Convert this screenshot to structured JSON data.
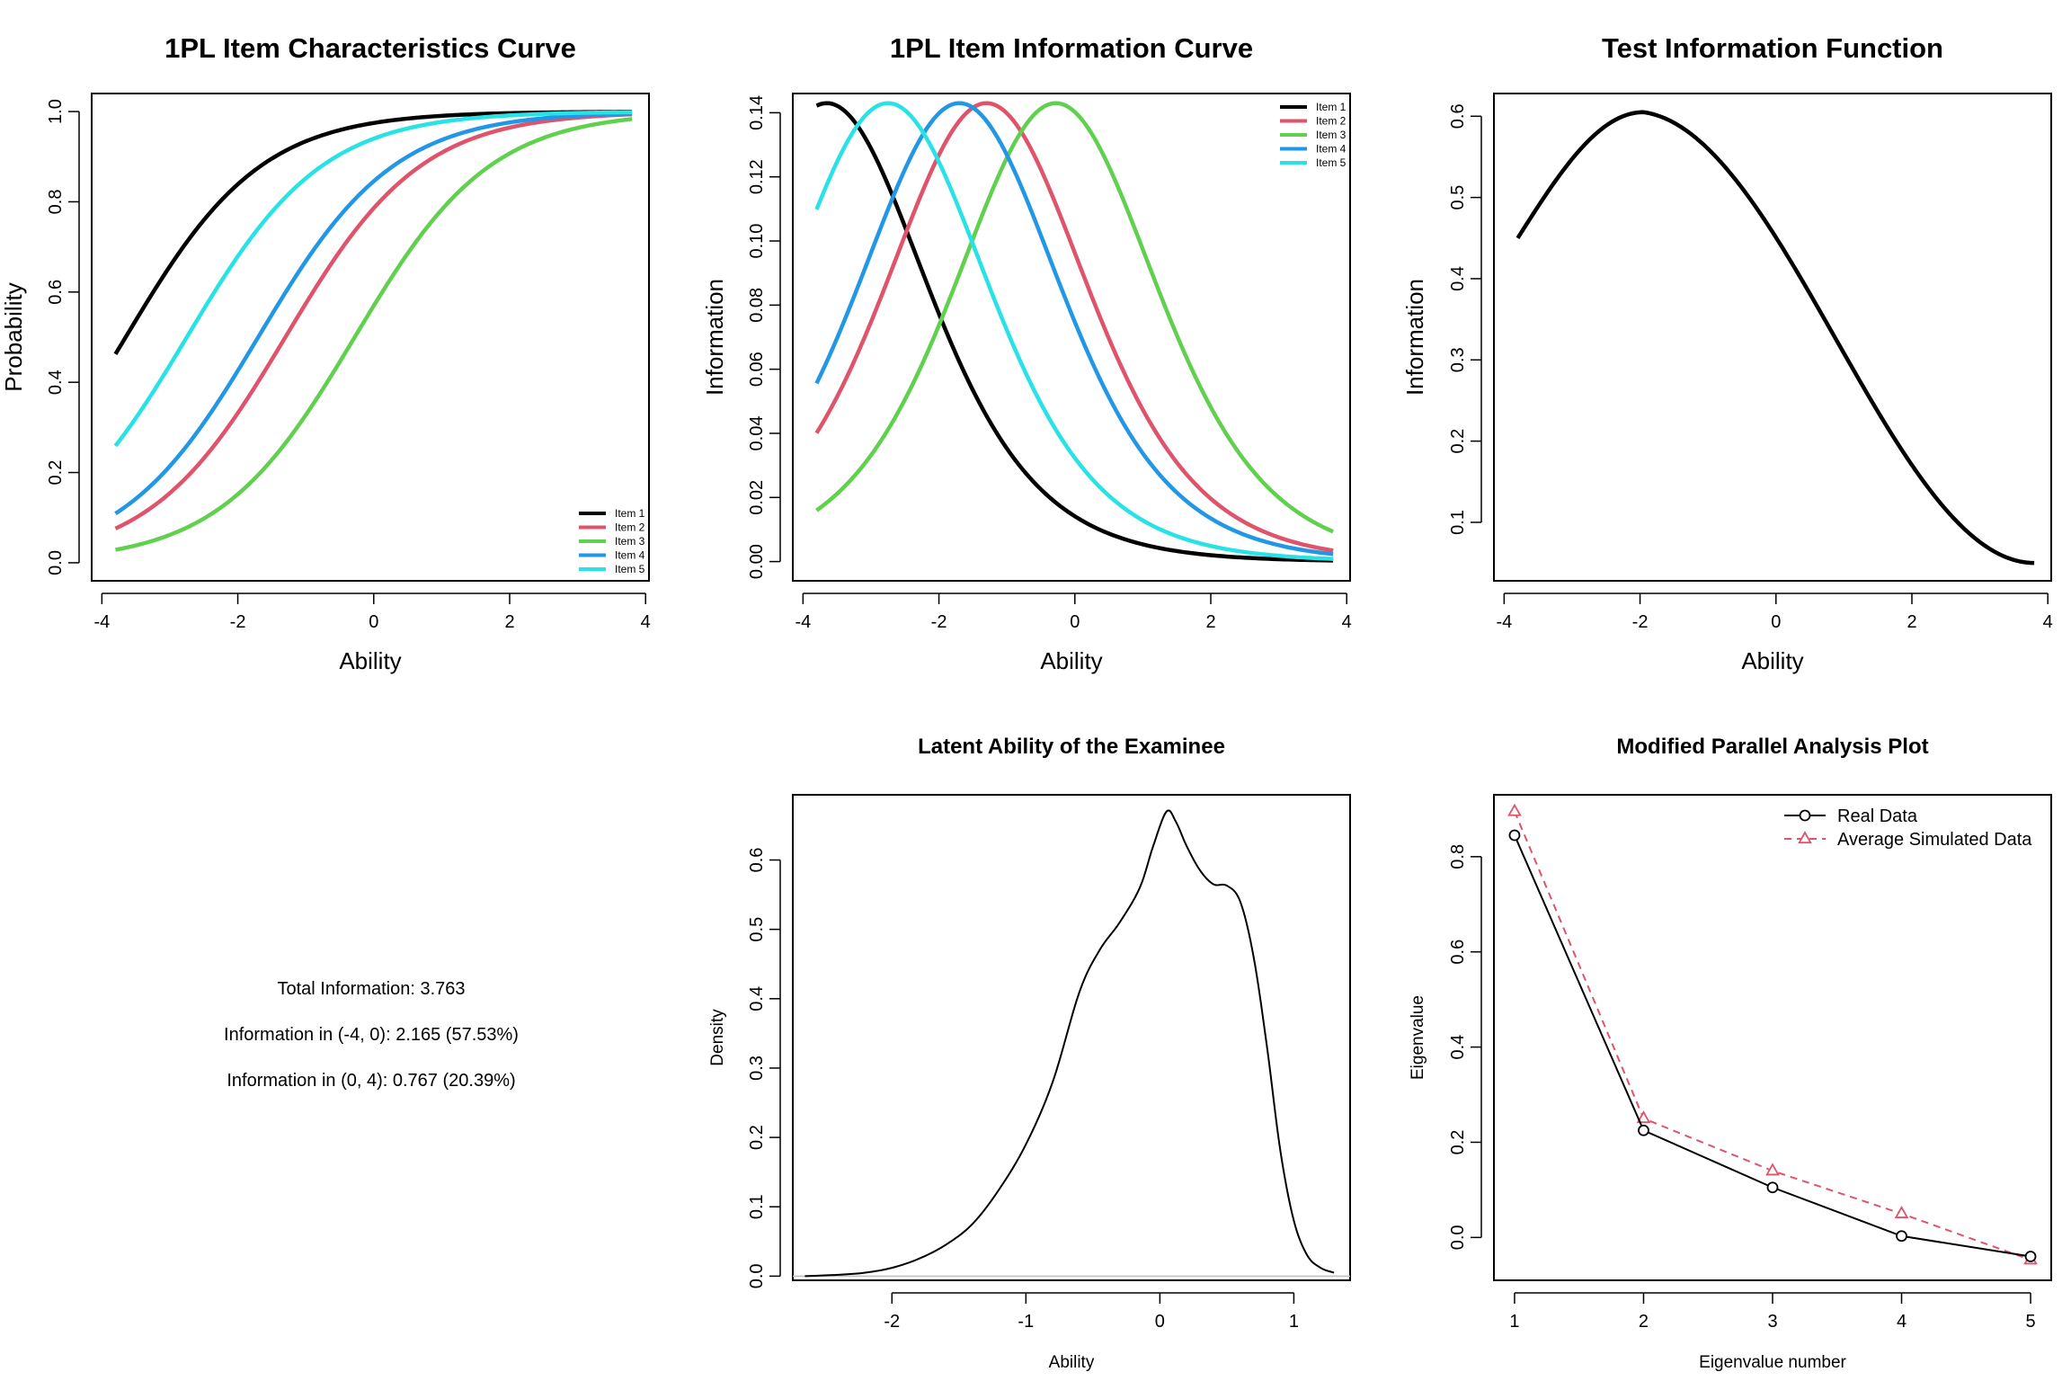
{
  "chart_data": [
    {
      "type": "line",
      "title": "1PL Item Characteristics Curve",
      "xlabel": "Ability",
      "ylabel": "Probability",
      "xlim": [
        -4,
        4
      ],
      "ylim": [
        0,
        1
      ],
      "xticks": [
        "-4",
        "-2",
        "0",
        "2",
        "4"
      ],
      "yticks": [
        "0.0",
        "0.2",
        "0.4",
        "0.6",
        "0.8",
        "1.0"
      ],
      "legend_position": "bottom-right",
      "x": [
        -3.8,
        3.8
      ],
      "series": [
        {
          "name": "Item 1",
          "color": "#000000",
          "difficulty": -3.65
        },
        {
          "name": "Item 2",
          "color": "#DF536B",
          "difficulty": -1.3
        },
        {
          "name": "Item 3",
          "color": "#61D04F",
          "difficulty": -0.28
        },
        {
          "name": "Item 4",
          "color": "#2297E6",
          "difficulty": -1.7
        },
        {
          "name": "Item 5",
          "color": "#28E2E5",
          "difficulty": -2.75
        }
      ]
    },
    {
      "type": "line",
      "title": "1PL Item Information Curve",
      "xlabel": "Ability",
      "ylabel": "Information",
      "xlim": [
        -4,
        4
      ],
      "ylim": [
        0,
        0.14
      ],
      "xticks": [
        "-4",
        "-2",
        "0",
        "2",
        "4"
      ],
      "yticks": [
        "0.00",
        "0.02",
        "0.04",
        "0.06",
        "0.08",
        "0.10",
        "0.12",
        "0.14"
      ],
      "legend_position": "top-right",
      "x": [
        -3.8,
        3.8
      ],
      "series": [
        {
          "name": "Item 1",
          "color": "#000000",
          "difficulty": -3.65
        },
        {
          "name": "Item 2",
          "color": "#DF536B",
          "difficulty": -1.3
        },
        {
          "name": "Item 3",
          "color": "#61D04F",
          "difficulty": -0.28
        },
        {
          "name": "Item 4",
          "color": "#2297E6",
          "difficulty": -1.7
        },
        {
          "name": "Item 5",
          "color": "#28E2E5",
          "difficulty": -2.75
        }
      ]
    },
    {
      "type": "line",
      "title": "Test Information Function",
      "xlabel": "Ability",
      "ylabel": "Information",
      "xlim": [
        -4,
        4
      ],
      "ylim": [
        0.05,
        0.6
      ],
      "xticks": [
        "-4",
        "-2",
        "0",
        "2",
        "4"
      ],
      "yticks": [
        "0.1",
        "0.2",
        "0.3",
        "0.4",
        "0.5",
        "0.6"
      ],
      "series": [
        {
          "color": "#000000",
          "x": [
            -3.8,
            -1.95,
            3.8
          ],
          "y": [
            0.45,
            0.605,
            0.05
          ]
        }
      ]
    },
    {
      "type": "line",
      "title": "Latent Ability of the Examinee",
      "xlabel": "Ability",
      "ylabel": "Density",
      "xlim": [
        -2.7,
        1.4
      ],
      "ylim": [
        0,
        0.67
      ],
      "xticks": [
        "-2",
        "-1",
        "0",
        "1"
      ],
      "yticks": [
        "0.0",
        "0.1",
        "0.2",
        "0.3",
        "0.4",
        "0.5",
        "0.6"
      ],
      "series": [
        {
          "color": "#000000",
          "x": [
            -2.65,
            -2.4,
            -2.2,
            -2.0,
            -1.8,
            -1.6,
            -1.4,
            -1.2,
            -1.0,
            -0.8,
            -0.6,
            -0.45,
            -0.3,
            -0.15,
            -0.05,
            0.05,
            0.12,
            0.2,
            0.3,
            0.4,
            0.5,
            0.6,
            0.7,
            0.8,
            0.9,
            1.0,
            1.1,
            1.2,
            1.3
          ],
          "y": [
            0.0,
            0.002,
            0.005,
            0.012,
            0.025,
            0.045,
            0.075,
            0.125,
            0.19,
            0.28,
            0.41,
            0.47,
            0.51,
            0.56,
            0.62,
            0.67,
            0.655,
            0.62,
            0.585,
            0.565,
            0.563,
            0.54,
            0.46,
            0.33,
            0.18,
            0.08,
            0.03,
            0.012,
            0.005
          ]
        }
      ]
    },
    {
      "type": "line",
      "title": "Modified Parallel Analysis Plot",
      "xlabel": "Eigenvalue number",
      "ylabel": "Eigenvalue",
      "xlim": [
        1,
        5
      ],
      "ylim": [
        -0.05,
        0.9
      ],
      "xticks": [
        "1",
        "2",
        "3",
        "4",
        "5"
      ],
      "yticks": [
        "0.0",
        "0.2",
        "0.4",
        "0.6",
        "0.8"
      ],
      "legend_position": "top-right",
      "categories": [
        1,
        2,
        3,
        4,
        5
      ],
      "series": [
        {
          "name": "Real Data",
          "color": "#000000",
          "values": [
            0.845,
            0.225,
            0.105,
            0.003,
            -0.04
          ]
        },
        {
          "name": "Average Simulated Data",
          "color": "#DF536B",
          "values": [
            0.895,
            0.25,
            0.14,
            0.05,
            -0.047
          ]
        }
      ]
    }
  ],
  "info_panel": {
    "line1": "Total Information: 3.763",
    "line2": "Information in (-4, 0): 2.165 (57.53%)",
    "line3": "Information in (0, 4): 0.767 (20.39%)"
  }
}
